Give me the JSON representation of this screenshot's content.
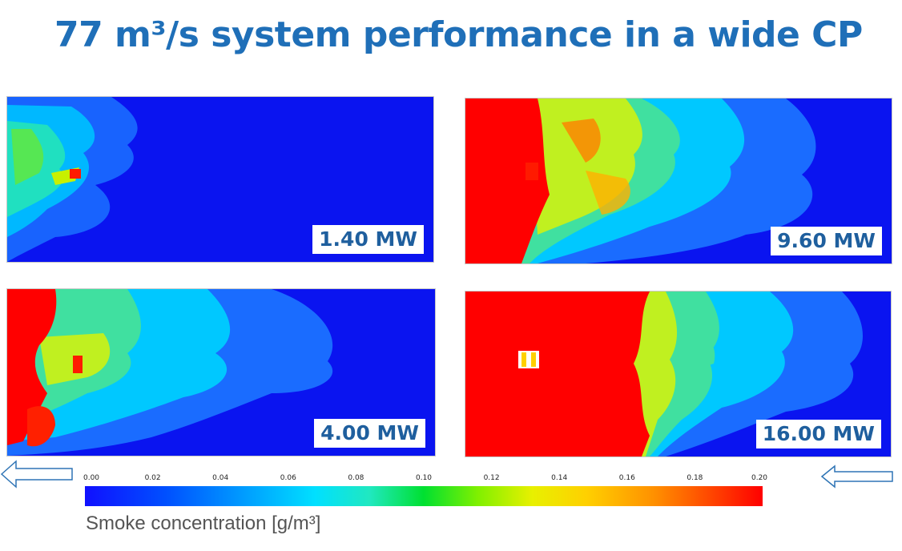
{
  "title": "77 m³/s system performance in a wide CP",
  "panels": [
    {
      "label": "1.40 MW"
    },
    {
      "label": "9.60 MW"
    },
    {
      "label": "4.00 MW"
    },
    {
      "label": "16.00 MW"
    }
  ],
  "colorbar": {
    "ticks": [
      "0.00",
      "0.02",
      "0.04",
      "0.06",
      "0.08",
      "0.10",
      "0.12",
      "0.14",
      "0.16",
      "0.18",
      "0.20"
    ],
    "label": "Smoke concentration [g/m³]",
    "min_color": "#1010ff",
    "max_color": "#ff0000"
  },
  "colors": {
    "title": "#1f6fb8",
    "background_blue": "#0a14f0",
    "label_text": "#1f5f9e",
    "arrow_outline": "#2e74b5"
  }
}
